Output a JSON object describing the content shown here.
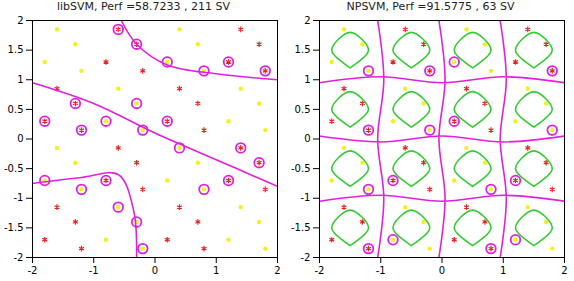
{
  "chart_data": [
    {
      "type": "scatter",
      "title": "libSVM, Perf =58.7233 , 211 SV",
      "xlim": [
        -2,
        2
      ],
      "ylim": [
        -2,
        2
      ],
      "xticks": [
        -2,
        -1,
        0,
        1,
        2
      ],
      "yticks": [
        -2,
        -1.5,
        -1,
        -0.5,
        0,
        0.5,
        1,
        1.5,
        2
      ],
      "series": [
        {
          "type": "scatter",
          "color": "#e8231f",
          "marker": "asterisk",
          "x": [
            -1.8,
            -1.3,
            -1.6,
            -1.2,
            -1.8,
            -1.3,
            -1.6,
            -1.2,
            -0.8,
            -0.3,
            -0.6,
            -0.2,
            -0.8,
            -0.3,
            -0.6,
            -0.2,
            0.2,
            0.7,
            0.4,
            0.8,
            0.2,
            0.7,
            0.4,
            0.8,
            1.2,
            1.7,
            1.4,
            1.8,
            1.2,
            1.7,
            1.4,
            1.8
          ],
          "y": [
            -1.7,
            -1.4,
            -1.15,
            -1.85,
            0.3,
            0.6,
            0.85,
            0.15,
            -0.7,
            -0.4,
            -0.15,
            -0.85,
            1.3,
            1.6,
            1.85,
            1.15,
            -1.7,
            -1.4,
            -1.15,
            -1.85,
            0.3,
            0.6,
            0.85,
            0.15,
            -0.7,
            -0.4,
            -0.15,
            -0.85,
            1.3,
            1.6,
            1.85,
            1.15
          ]
        },
        {
          "type": "scatter",
          "color": "#f2f21a",
          "marker": "dot",
          "x": [
            -1.8,
            -1.3,
            -1.6,
            -1.2,
            -1.8,
            -1.3,
            -1.6,
            -1.2,
            -0.8,
            -0.3,
            -0.6,
            -0.2,
            -0.8,
            -0.3,
            -0.6,
            -0.2,
            0.2,
            0.7,
            0.4,
            0.8,
            0.2,
            0.7,
            0.4,
            0.8,
            1.2,
            1.7,
            1.4,
            1.8,
            1.2,
            1.7,
            1.4,
            1.8
          ],
          "y": [
            -0.7,
            -0.4,
            -0.15,
            -0.85,
            1.3,
            1.6,
            1.85,
            1.15,
            -1.7,
            -1.4,
            -1.15,
            -1.85,
            0.3,
            0.6,
            0.85,
            0.15,
            -0.7,
            -0.4,
            -0.15,
            -0.85,
            1.3,
            1.6,
            1.85,
            1.15,
            -1.7,
            -1.4,
            -1.15,
            -1.85,
            0.3,
            0.6,
            0.85,
            0.15
          ]
        },
        {
          "type": "scatter",
          "color": "#e020e0",
          "marker": "circle",
          "x": [
            -1.8,
            -1.2,
            -1.3,
            -0.8,
            -0.3,
            -0.2,
            0.2,
            0.4,
            0.8,
            1.2,
            1.4,
            1.7,
            -0.6,
            -0.3,
            0.2,
            0.8,
            1.2,
            1.8,
            -1.8,
            -1.2,
            -0.8,
            -0.6,
            -0.2,
            -0.3
          ],
          "y": [
            0.3,
            0.15,
            0.6,
            0.3,
            0.6,
            0.15,
            0.3,
            -0.15,
            -0.85,
            -0.7,
            -0.15,
            -0.4,
            1.85,
            1.6,
            1.3,
            1.15,
            1.3,
            1.15,
            -0.7,
            -0.85,
            -0.7,
            -1.15,
            -1.85,
            -1.4
          ]
        },
        {
          "type": "line",
          "color": "#e020e0",
          "line_style": "solid",
          "x": [
            -2,
            -1,
            0,
            1,
            2,
            null,
            -0.55,
            -0.3,
            0.2,
            1,
            2,
            null,
            -2,
            -1.2,
            -0.6,
            -0.35,
            -0.3
          ],
          "y": [
            0.95,
            0.6,
            0.1,
            -0.35,
            -0.8,
            null,
            2,
            1.6,
            1.25,
            1.1,
            1.0,
            null,
            -0.75,
            -0.65,
            -0.6,
            -1.2,
            -2
          ]
        }
      ]
    },
    {
      "type": "scatter",
      "title": "NPSVM, Perf =91.5775 , 63 SV",
      "xlim": [
        -2,
        2
      ],
      "ylim": [
        -2,
        2
      ],
      "xticks": [
        -2,
        -1,
        0,
        1,
        2
      ],
      "yticks": [
        -2,
        -1.5,
        -1,
        -0.5,
        0,
        0.5,
        1,
        1.5,
        2
      ],
      "series": [
        {
          "type": "scatter",
          "color": "#e8231f",
          "marker": "asterisk",
          "x": [
            -1.8,
            -1.3,
            -1.6,
            -1.2,
            -1.8,
            -1.3,
            -1.6,
            -1.2,
            -0.8,
            -0.3,
            -0.6,
            -0.2,
            -0.8,
            -0.3,
            -0.6,
            -0.2,
            0.2,
            0.7,
            0.4,
            0.8,
            0.2,
            0.7,
            0.4,
            0.8,
            1.2,
            1.7,
            1.4,
            1.8,
            1.2,
            1.7,
            1.4,
            1.8
          ],
          "y": [
            -1.7,
            -1.4,
            -1.15,
            -1.85,
            0.3,
            0.6,
            0.85,
            0.15,
            -0.7,
            -0.4,
            -0.15,
            -0.85,
            1.3,
            1.6,
            1.85,
            1.15,
            -1.7,
            -1.4,
            -1.15,
            -1.85,
            0.3,
            0.6,
            0.85,
            0.15,
            -0.7,
            -0.4,
            -0.15,
            -0.85,
            1.3,
            1.6,
            1.85,
            1.15
          ]
        },
        {
          "type": "scatter",
          "color": "#f2f21a",
          "marker": "dot",
          "x": [
            -1.8,
            -1.3,
            -1.6,
            -1.2,
            -1.8,
            -1.3,
            -1.6,
            -1.2,
            -0.8,
            -0.3,
            -0.6,
            -0.2,
            -0.8,
            -0.3,
            -0.6,
            -0.2,
            0.2,
            0.7,
            0.4,
            0.8,
            0.2,
            0.7,
            0.4,
            0.8,
            1.2,
            1.7,
            1.4,
            1.8,
            1.2,
            1.7,
            1.4,
            1.8
          ],
          "y": [
            -0.7,
            -0.4,
            -0.15,
            -0.85,
            1.3,
            1.6,
            1.85,
            1.15,
            -1.7,
            -1.4,
            -1.15,
            -1.85,
            0.3,
            0.6,
            0.85,
            0.15,
            -0.7,
            -0.4,
            -0.15,
            -0.85,
            1.3,
            1.6,
            1.85,
            1.15,
            -1.7,
            -1.4,
            -1.15,
            -1.85,
            0.3,
            0.6,
            0.85,
            0.15
          ]
        },
        {
          "type": "scatter",
          "color": "#e020e0",
          "marker": "circle",
          "x": [
            -1.2,
            -1.2,
            -0.8,
            -0.2,
            0.8,
            0.2,
            1.2,
            1.8,
            -1.2,
            -1.2,
            -0.8,
            -0.2,
            0.8,
            0.2,
            1.2,
            1.8
          ],
          "y": [
            -1.85,
            0.15,
            -0.7,
            1.15,
            -1.85,
            0.3,
            -0.7,
            1.15,
            -0.85,
            1.15,
            -1.7,
            0.15,
            -0.85,
            1.3,
            -1.7,
            0.15
          ]
        },
        {
          "type": "line",
          "color": "#33cc33",
          "line_style": "solid",
          "x": [
            -1.5,
            -1.2,
            -1.5,
            -1.8,
            -1.5,
            null,
            -1.5,
            -1.2,
            -1.5,
            -1.8,
            -1.5,
            null,
            -1.5,
            -1.2,
            -1.5,
            -1.8,
            -1.5,
            null,
            -1.5,
            -1.2,
            -1.5,
            -1.8,
            -1.5,
            null,
            -0.5,
            -0.2,
            -0.5,
            -0.8,
            -0.5,
            null,
            -0.5,
            -0.2,
            -0.5,
            -0.8,
            -0.5,
            null,
            -0.5,
            -0.2,
            -0.5,
            -0.8,
            -0.5,
            null,
            -0.5,
            -0.2,
            -0.5,
            -0.8,
            -0.5,
            null,
            0.5,
            0.8,
            0.5,
            0.2,
            0.5,
            null,
            0.5,
            0.8,
            0.5,
            0.2,
            0.5,
            null,
            0.5,
            0.8,
            0.5,
            0.2,
            0.5,
            null,
            0.5,
            0.8,
            0.5,
            0.2,
            0.5,
            null,
            1.5,
            1.8,
            1.5,
            1.2,
            1.5,
            null,
            1.5,
            1.8,
            1.5,
            1.2,
            1.5,
            null,
            1.5,
            1.8,
            1.5,
            1.2,
            1.5,
            null,
            1.5,
            1.8,
            1.5,
            1.2,
            1.5
          ],
          "y": [
            -1.8,
            -1.5,
            -1.2,
            -1.5,
            -1.8,
            null,
            -0.8,
            -0.5,
            -0.2,
            -0.5,
            -0.8,
            null,
            0.2,
            0.5,
            0.8,
            0.5,
            0.2,
            null,
            1.2,
            1.5,
            1.8,
            1.5,
            1.2,
            null,
            -1.8,
            -1.5,
            -1.2,
            -1.5,
            -1.8,
            null,
            -0.8,
            -0.5,
            -0.2,
            -0.5,
            -0.8,
            null,
            0.2,
            0.5,
            0.8,
            0.5,
            0.2,
            null,
            1.2,
            1.5,
            1.8,
            1.5,
            1.2,
            null,
            -1.8,
            -1.5,
            -1.2,
            -1.5,
            -1.8,
            null,
            -0.8,
            -0.5,
            -0.2,
            -0.5,
            -0.8,
            null,
            0.2,
            0.5,
            0.8,
            0.5,
            0.2,
            null,
            1.2,
            1.5,
            1.8,
            1.5,
            1.2,
            null,
            -1.8,
            -1.5,
            -1.2,
            -1.5,
            -1.8,
            null,
            -0.8,
            -0.5,
            -0.2,
            -0.5,
            -0.8,
            null,
            0.2,
            0.5,
            0.8,
            0.5,
            0.2,
            null,
            1.2,
            1.5,
            1.8,
            1.5,
            1.2
          ]
        },
        {
          "type": "line",
          "color": "#e020e0",
          "line_style": "solid",
          "x": [
            -1.05,
            -0.95,
            -1.05,
            -0.95,
            -1.05,
            null,
            -0.05,
            0.05,
            -0.05,
            0.05,
            -0.05,
            null,
            0.95,
            1.05,
            0.95,
            1.05,
            0.95,
            null,
            -2,
            -1,
            0,
            1,
            2,
            null,
            -2,
            -1,
            0,
            1,
            2,
            null,
            -2,
            -1,
            0,
            1,
            2
          ],
          "y": [
            -2,
            -1,
            0,
            1,
            2,
            null,
            -2,
            -1,
            0,
            1,
            2,
            null,
            -2,
            -1,
            0,
            1,
            2,
            null,
            -1.05,
            -0.95,
            -1.05,
            -0.95,
            -1.05,
            null,
            0.05,
            -0.05,
            0.05,
            -0.05,
            0.05,
            null,
            0.95,
            1.05,
            0.95,
            1.05,
            0.95
          ]
        }
      ]
    }
  ]
}
